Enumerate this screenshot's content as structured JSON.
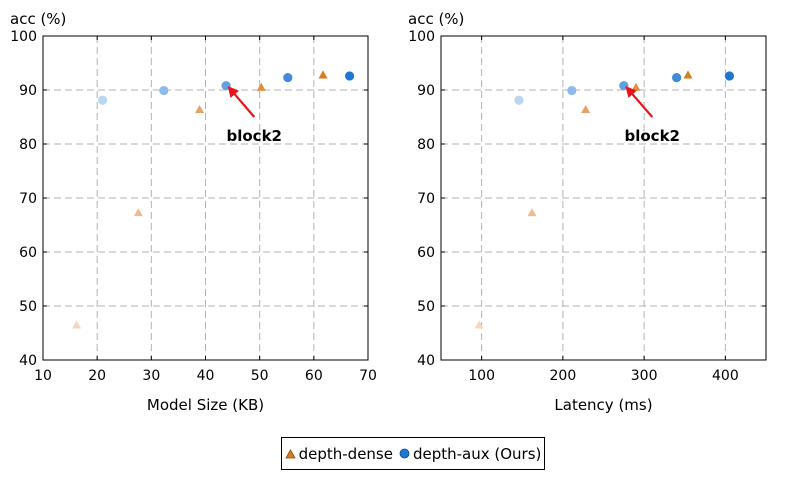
{
  "chart_data": [
    {
      "type": "scatter",
      "xlabel": "Model Size (KB)",
      "ylabel": "acc (%)",
      "xlim": [
        10,
        70
      ],
      "ylim": [
        40,
        100
      ],
      "xticks": [
        10,
        20,
        30,
        40,
        50,
        60,
        70
      ],
      "yticks": [
        40,
        50,
        60,
        70,
        80,
        90,
        100
      ],
      "grid": true,
      "series": [
        {
          "name": "depth-dense",
          "marker": "triangle",
          "color": "#d97b1f",
          "points": [
            {
              "x": 16.2,
              "y": 46.5,
              "shade": 0.3
            },
            {
              "x": 27.6,
              "y": 67.3,
              "shade": 0.5
            },
            {
              "x": 38.9,
              "y": 86.4,
              "shade": 0.7
            },
            {
              "x": 50.3,
              "y": 90.5,
              "shade": 0.85
            },
            {
              "x": 61.7,
              "y": 92.8,
              "shade": 1.0
            }
          ]
        },
        {
          "name": "depth-aux (Ours)",
          "marker": "circle",
          "color": "#1f77d4",
          "points": [
            {
              "x": 21.0,
              "y": 88.1,
              "shade": 0.3
            },
            {
              "x": 32.3,
              "y": 89.9,
              "shade": 0.5
            },
            {
              "x": 43.8,
              "y": 90.8,
              "shade": 0.7
            },
            {
              "x": 55.2,
              "y": 92.3,
              "shade": 0.85
            },
            {
              "x": 66.6,
              "y": 92.6,
              "shade": 1.0
            }
          ]
        }
      ],
      "annotations": [
        {
          "text": "block2",
          "target": {
            "x": 43.8,
            "y": 90.8
          },
          "from": {
            "x": 49.0,
            "y": 85.0
          }
        }
      ]
    },
    {
      "type": "scatter",
      "xlabel": "Latency (ms)",
      "ylabel": "acc (%)",
      "xlim": [
        50,
        450
      ],
      "ylim": [
        40,
        100
      ],
      "xticks": [
        100,
        200,
        300,
        400
      ],
      "yticks": [
        40,
        50,
        60,
        70,
        80,
        90,
        100
      ],
      "grid": true,
      "series": [
        {
          "name": "depth-dense",
          "marker": "triangle",
          "color": "#d97b1f",
          "points": [
            {
              "x": 97,
              "y": 46.5,
              "shade": 0.3
            },
            {
              "x": 162,
              "y": 67.3,
              "shade": 0.5
            },
            {
              "x": 228,
              "y": 86.4,
              "shade": 0.7
            },
            {
              "x": 290,
              "y": 90.5,
              "shade": 0.85
            },
            {
              "x": 354,
              "y": 92.8,
              "shade": 1.0
            }
          ]
        },
        {
          "name": "depth-aux (Ours)",
          "marker": "circle",
          "color": "#1f77d4",
          "points": [
            {
              "x": 146,
              "y": 88.1,
              "shade": 0.3
            },
            {
              "x": 211,
              "y": 89.9,
              "shade": 0.5
            },
            {
              "x": 275,
              "y": 90.8,
              "shade": 0.7
            },
            {
              "x": 340,
              "y": 92.3,
              "shade": 0.85
            },
            {
              "x": 405,
              "y": 92.6,
              "shade": 1.0
            }
          ]
        }
      ],
      "annotations": [
        {
          "text": "block2",
          "target": {
            "x": 275,
            "y": 90.8
          },
          "from": {
            "x": 310,
            "y": 85.0
          }
        }
      ]
    }
  ],
  "legend": {
    "placement": "bottom-center",
    "items": [
      {
        "label": "depth-dense",
        "marker": "triangle",
        "color": "#d97b1f"
      },
      {
        "label": "depth-aux (Ours)",
        "marker": "circle",
        "color": "#1f77d4"
      }
    ]
  },
  "arrow_color": "#e8141b"
}
